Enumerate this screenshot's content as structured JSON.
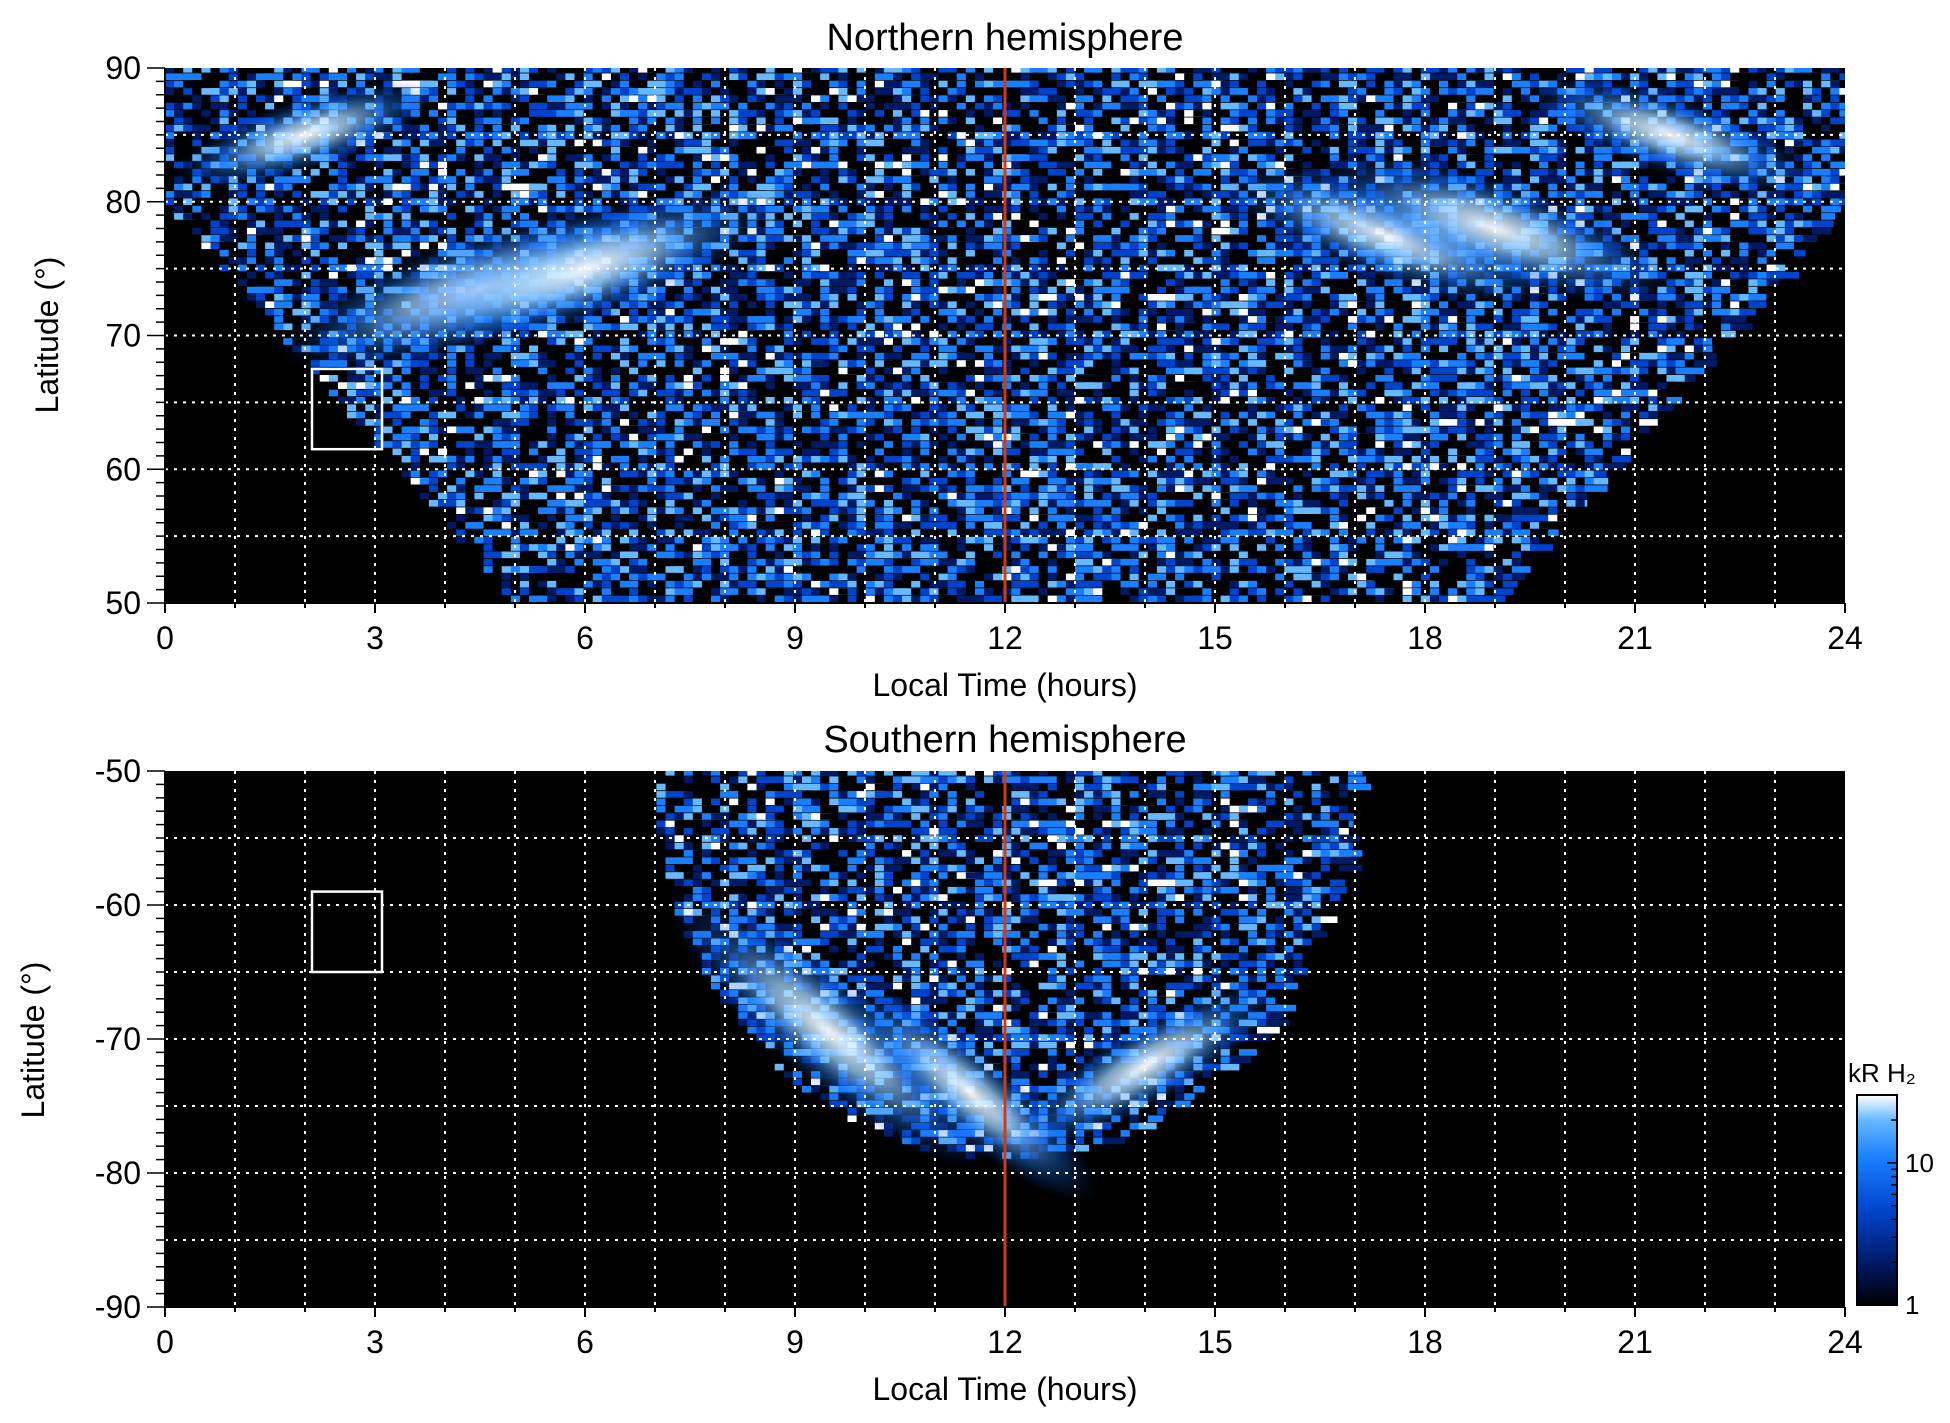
{
  "chart_data": [
    {
      "type": "heatmap",
      "title": "Northern hemisphere",
      "xlabel": "Local Time (hours)",
      "ylabel": "Latitude (°)",
      "xlim": [
        0,
        24
      ],
      "ylim": [
        50,
        90
      ],
      "x_ticks": [
        "0",
        "3",
        "6",
        "9",
        "12",
        "15",
        "18",
        "21",
        "24"
      ],
      "y_ticks": [
        "50",
        "60",
        "70",
        "80",
        "90"
      ],
      "grid": true,
      "reference_line": {
        "x": 12,
        "color": "#d03a14"
      },
      "box": {
        "x": [
          2.1,
          3.1
        ],
        "y": [
          61.5,
          67.5
        ]
      },
      "emission_region": {
        "outer_lat": 80,
        "edge_lat": 50,
        "lt_low": 5,
        "lt_high": 19,
        "top_lat": 90
      },
      "bright_arcs": [
        {
          "lt": 4.5,
          "lat": 73.5,
          "intensity": 30
        },
        {
          "lt": 6.0,
          "lat": 75.0,
          "intensity": 28
        },
        {
          "lt": 17.5,
          "lat": 77.5,
          "intensity": 22
        },
        {
          "lt": 19.0,
          "lat": 78.0,
          "intensity": 25
        },
        {
          "lt": 21.5,
          "lat": 85.0,
          "intensity": 15
        },
        {
          "lt": 2.0,
          "lat": 85.0,
          "intensity": 12
        }
      ]
    },
    {
      "type": "heatmap",
      "title": "Southern hemisphere",
      "xlabel": "Local Time (hours)",
      "ylabel": "Latitude (°)",
      "xlim": [
        0,
        24
      ],
      "ylim": [
        -90,
        -50
      ],
      "x_ticks": [
        "0",
        "3",
        "6",
        "9",
        "12",
        "15",
        "18",
        "21",
        "24"
      ],
      "y_ticks": [
        "-50",
        "-60",
        "-70",
        "-80",
        "-90"
      ],
      "grid": true,
      "reference_line": {
        "x": 12,
        "color": "#d03a14"
      },
      "box": {
        "x": [
          2.1,
          3.1
        ],
        "y": [
          -65,
          -59
        ]
      },
      "emission_region": {
        "edge_lat": -50,
        "lt_low": 7,
        "lt_high": 17,
        "bottom_lat": -79
      },
      "bright_arcs": [
        {
          "lt": 9.5,
          "lat": -69.5,
          "intensity": 28
        },
        {
          "lt": 11.5,
          "lat": -74.0,
          "intensity": 18
        },
        {
          "lt": 14.0,
          "lat": -72.0,
          "intensity": 16
        }
      ]
    }
  ],
  "colorbar": {
    "label": "kR H₂",
    "ticks": [
      "1",
      "10"
    ],
    "range": [
      1,
      30
    ],
    "scale": "log",
    "colors": [
      "#000000",
      "#001a66",
      "#0044cc",
      "#1a7fff",
      "#66b8ff",
      "#ffffff"
    ]
  }
}
